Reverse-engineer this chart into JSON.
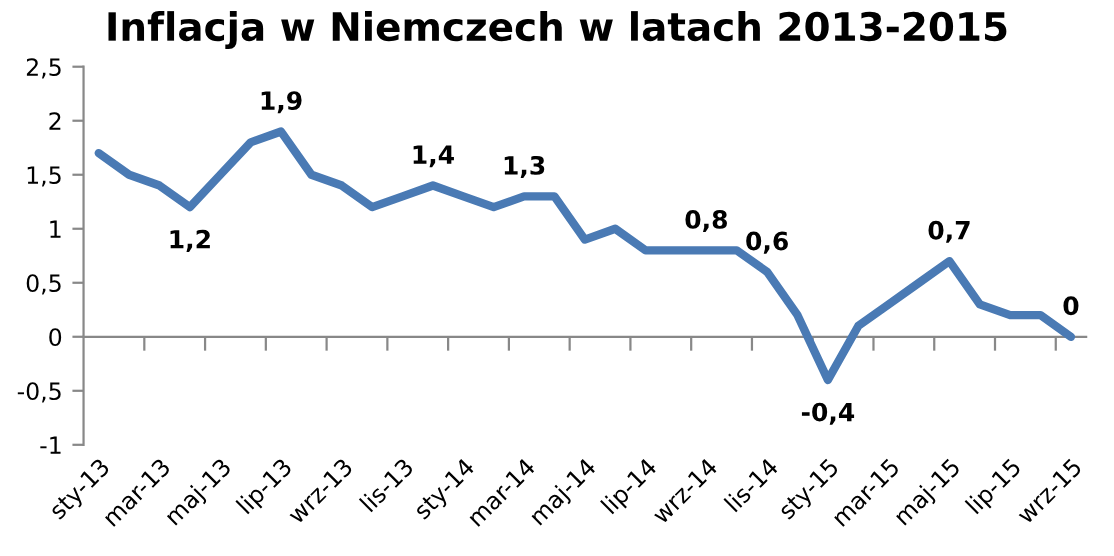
{
  "chart_data": {
    "type": "line",
    "title": "Inflacja w Niemczech w latach 2013-2015",
    "categories": [
      "sty-13",
      null,
      "mar-13",
      null,
      "maj-13",
      null,
      "lip-13",
      null,
      "wrz-13",
      null,
      "lis-13",
      null,
      "sty-14",
      null,
      "mar-14",
      null,
      "maj-14",
      null,
      "lip-14",
      null,
      "wrz-14",
      null,
      "lis-14",
      null,
      "sty-15",
      null,
      "mar-15",
      null,
      "maj-15",
      null,
      "lip-15",
      null,
      "wrz-15"
    ],
    "series": [
      {
        "color": "#4a7ab4",
        "values": [
          1.7,
          1.5,
          1.4,
          1.2,
          1.5,
          1.8,
          1.9,
          1.5,
          1.4,
          1.2,
          1.3,
          1.4,
          1.3,
          1.2,
          1.3,
          1.3,
          0.9,
          1.0,
          0.8,
          0.8,
          0.8,
          0.8,
          0.6,
          0.2,
          -0.4,
          0.1,
          0.3,
          0.5,
          0.7,
          0.3,
          0.2,
          0.2,
          0.0
        ],
        "value_labels": [
          null,
          null,
          null,
          "1,2",
          null,
          null,
          "1,9",
          null,
          null,
          null,
          null,
          "1,4",
          null,
          null,
          "1,3",
          null,
          null,
          null,
          null,
          null,
          "0,8",
          null,
          "0,6",
          null,
          "-0,4",
          null,
          null,
          null,
          "0,7",
          null,
          null,
          null,
          "0"
        ]
      }
    ],
    "ylim": [
      -1,
      2.5
    ],
    "yticks": [
      {
        "value": -1,
        "label": "-1"
      },
      {
        "value": -0.5,
        "label": "-0,5"
      },
      {
        "value": 0,
        "label": "0"
      },
      {
        "value": 0.5,
        "label": "0,5"
      },
      {
        "value": 1,
        "label": "1"
      },
      {
        "value": 1.5,
        "label": "1,5"
      },
      {
        "value": 2,
        "label": "2"
      },
      {
        "value": 2.5,
        "label": "2,5"
      }
    ],
    "legend": false,
    "marker": "none",
    "line_style": "solid"
  }
}
